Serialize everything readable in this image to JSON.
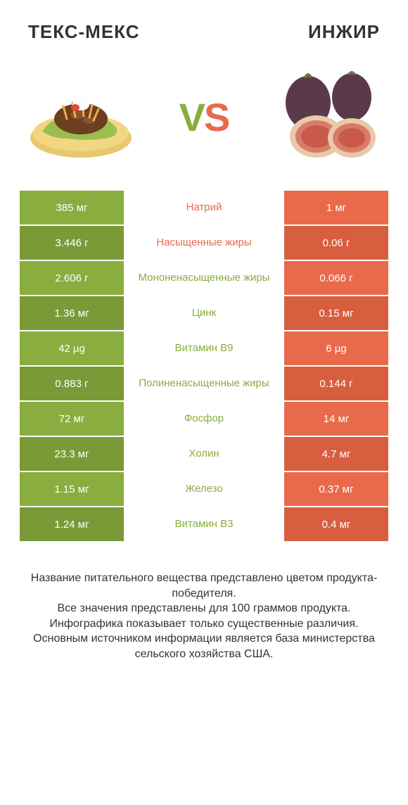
{
  "header": {
    "left_title": "ТЕКС-МЕКС",
    "right_title": "ИНЖИР"
  },
  "vs": {
    "char1": "V",
    "char2": "S"
  },
  "colors": {
    "green": "#8aad3f",
    "green_dark": "#7a9a37",
    "orange": "#e96a4a",
    "orange_dark": "#d85e40",
    "label_orange": "#e96a4a",
    "label_green": "#8aad3f",
    "text": "#333333",
    "bg": "#ffffff"
  },
  "rows": [
    {
      "left": "385 мг",
      "label": "Натрий",
      "right": "1 мг",
      "winner": "left",
      "label_color": "orange"
    },
    {
      "left": "3.446 г",
      "label": "Насыщенные жиры",
      "right": "0.06 г",
      "winner": "left",
      "label_color": "orange"
    },
    {
      "left": "2.606 г",
      "label": "Мононенасыщенные жиры",
      "right": "0.066 г",
      "winner": "left",
      "label_color": "green"
    },
    {
      "left": "1.36 мг",
      "label": "Цинк",
      "right": "0.15 мг",
      "winner": "left",
      "label_color": "green"
    },
    {
      "left": "42 µg",
      "label": "Витамин B9",
      "right": "6 µg",
      "winner": "left",
      "label_color": "green"
    },
    {
      "left": "0.883 г",
      "label": "Полиненасыщенные жиры",
      "right": "0.144 г",
      "winner": "left",
      "label_color": "green"
    },
    {
      "left": "72 мг",
      "label": "Фосфор",
      "right": "14 мг",
      "winner": "left",
      "label_color": "green"
    },
    {
      "left": "23.3 мг",
      "label": "Холин",
      "right": "4.7 мг",
      "winner": "left",
      "label_color": "green"
    },
    {
      "left": "1.15 мг",
      "label": "Железо",
      "right": "0.37 мг",
      "winner": "left",
      "label_color": "green"
    },
    {
      "left": "1.24 мг",
      "label": "Витамин B3",
      "right": "0.4 мг",
      "winner": "left",
      "label_color": "green"
    }
  ],
  "footer": {
    "line1": "Название питательного вещества представлено цветом продукта-победителя.",
    "line2": "Все значения представлены для 100 граммов продукта.",
    "line3": "Инфографика показывает только существенные различия.",
    "line4": "Основным источником информации является база министерства сельского хозяйства США."
  }
}
